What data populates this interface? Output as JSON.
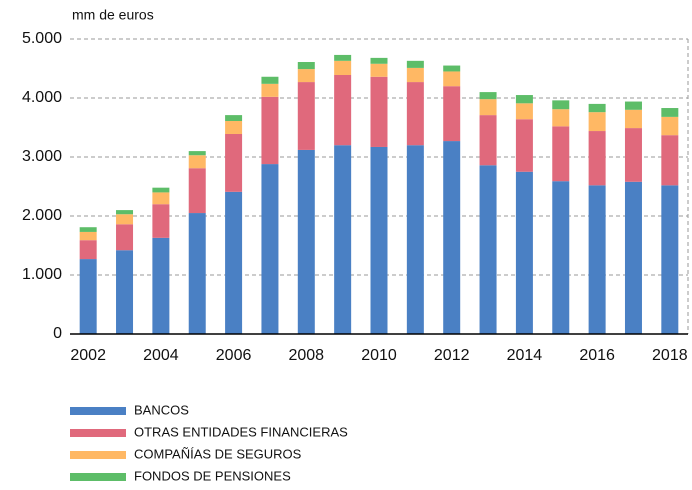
{
  "chart_data": {
    "type": "stacked_bar",
    "y_axis_label": "mm de euros",
    "categories": [
      "2002",
      null,
      "2004",
      null,
      "2006",
      null,
      "2008",
      null,
      "2010",
      null,
      "2012",
      null,
      "2014",
      null,
      "2016",
      null,
      "2018"
    ],
    "series": [
      {
        "name": "BANCOS",
        "color": "#4a80c4",
        "values": [
          1270,
          1420,
          1630,
          2050,
          2410,
          2880,
          3120,
          3200,
          3170,
          3200,
          3270,
          2860,
          2750,
          2590,
          2520,
          2580,
          2520
        ]
      },
      {
        "name": "OTRAS ENTIDADES FINANCIERAS",
        "color": "#e0697c",
        "values": [
          320,
          440,
          570,
          760,
          980,
          1140,
          1150,
          1190,
          1190,
          1070,
          930,
          850,
          890,
          930,
          920,
          910,
          850
        ]
      },
      {
        "name": "COMPAÑÍAS DE SEGUROS",
        "color": "#ffb864",
        "values": [
          140,
          170,
          200,
          220,
          220,
          220,
          220,
          240,
          220,
          240,
          250,
          270,
          270,
          290,
          320,
          310,
          310
        ]
      },
      {
        "name": "FONDOS DE PENSIONES",
        "color": "#5dbd68",
        "values": [
          80,
          70,
          80,
          70,
          100,
          120,
          120,
          100,
          100,
          120,
          100,
          120,
          140,
          150,
          140,
          140,
          150
        ]
      }
    ],
    "ylim": [
      0,
      5000
    ],
    "yticks": [
      0,
      {
        "value": 1000,
        "label": "1.000"
      },
      {
        "value": 2000,
        "label": "2.000"
      },
      {
        "value": 3000,
        "label": "3.000"
      },
      {
        "value": 4000,
        "label": "4.000"
      },
      {
        "value": 5000,
        "label": "5.000"
      }
    ],
    "grid": true
  }
}
